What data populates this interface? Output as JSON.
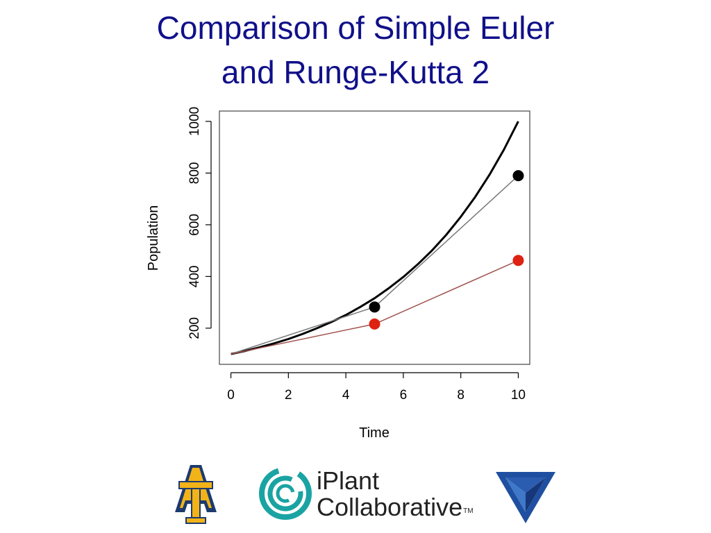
{
  "slide": {
    "title_line1": "Comparison of Simple Euler",
    "title_line2": "and Runge-Kutta 2"
  },
  "chart_data": {
    "type": "line",
    "title": "",
    "xlabel": "Time",
    "ylabel": "Population",
    "xlim": [
      -0.4,
      10.4
    ],
    "ylim": [
      60,
      1040
    ],
    "x_ticks": [
      0,
      2,
      4,
      6,
      8,
      10
    ],
    "y_ticks": [
      200,
      400,
      600,
      800,
      1000
    ],
    "series": [
      {
        "kind": "curve",
        "x": [
          0,
          0.5,
          1,
          1.5,
          2,
          2.5,
          3,
          3.5,
          4,
          4.5,
          5,
          5.5,
          6,
          6.5,
          7,
          7.5,
          8,
          8.5,
          9,
          9.5,
          10
        ],
        "values": [
          100,
          112,
          126,
          141,
          158,
          178,
          200,
          224,
          251,
          282,
          316,
          355,
          398,
          447,
          501,
          562,
          631,
          708,
          794,
          891,
          1000
        ],
        "color": "#000000"
      },
      {
        "kind": "points-line",
        "x": [
          0,
          5,
          10
        ],
        "values": [
          100,
          282,
          790
        ],
        "color": "#000000",
        "line_color": "#777777"
      },
      {
        "kind": "points-line",
        "x": [
          0,
          5,
          10
        ],
        "values": [
          100,
          216,
          462
        ],
        "color": "#dd2211",
        "line_color": "#a0524d"
      }
    ],
    "grid": false,
    "legend": "none"
  },
  "logos": {
    "iplant_line1": "iPlant",
    "iplant_line2": "Collaborative",
    "iplant_tm": "TM",
    "at_colors": [
      "#f2b318",
      "#1c3a6e"
    ],
    "iplant_color": "#1aa3a3",
    "triangle_color": "#1f4fa0"
  }
}
